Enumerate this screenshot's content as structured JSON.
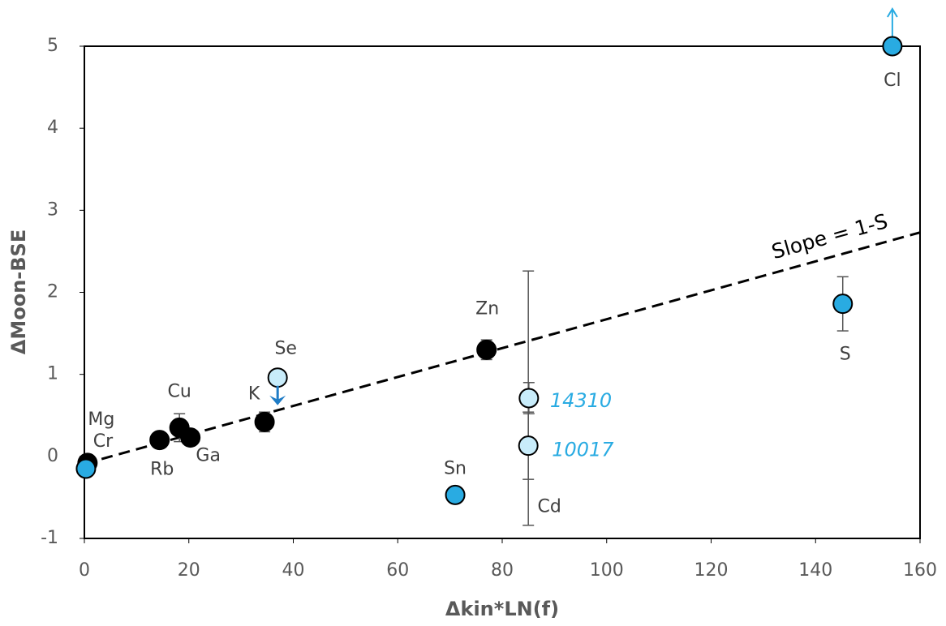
{
  "chart_data": {
    "type": "scatter",
    "xlabel": "Δkin*LN(f)",
    "ylabel": "ΔMoon-BSE",
    "xlim": [
      0,
      160
    ],
    "ylim": [
      -1,
      5
    ],
    "xticks": [
      0,
      20,
      40,
      60,
      80,
      100,
      120,
      140,
      160
    ],
    "yticks": [
      -1,
      0,
      1,
      2,
      3,
      4,
      5
    ],
    "grid": false,
    "colors": {
      "black": "#000000",
      "blue": "#29abe2",
      "light": "#c8ecfa"
    },
    "points": [
      {
        "label": "Mg",
        "x": 0.6,
        "y": -0.08,
        "color": "black"
      },
      {
        "label": "Cr",
        "x": 0.3,
        "y": -0.15,
        "color": "blue"
      },
      {
        "label": "Rb",
        "x": 14.4,
        "y": 0.2,
        "color": "black"
      },
      {
        "label": "Cu",
        "x": 18.2,
        "y": 0.35,
        "err": 0.17,
        "color": "black"
      },
      {
        "label": "Ga",
        "x": 20.3,
        "y": 0.23,
        "color": "black"
      },
      {
        "label": "K",
        "x": 34.5,
        "y": 0.42,
        "err": 0.12,
        "color": "black"
      },
      {
        "label": "Se",
        "x": 37,
        "y": 0.96,
        "color": "light",
        "arrow": "down"
      },
      {
        "label": "Zn",
        "x": 77,
        "y": 1.3,
        "err": 0.12,
        "color": "black"
      },
      {
        "label": "Sn",
        "x": 71,
        "y": -0.47,
        "color": "blue"
      },
      {
        "label": "14310",
        "x": 85.1,
        "y": 0.71,
        "err": 0.19,
        "color": "light",
        "italic": true
      },
      {
        "label": "10017",
        "x": 85,
        "y": 0.13,
        "err": 0.41,
        "color": "light",
        "italic": true
      },
      {
        "label": "S",
        "x": 145.2,
        "y": 1.86,
        "err": 0.33,
        "color": "blue"
      },
      {
        "label": "Cl",
        "x": 154.7,
        "y": 5,
        "color": "blue",
        "arrow": "up"
      }
    ],
    "range": {
      "label": "Cd",
      "x": 85,
      "low": -0.84,
      "high": 2.26
    },
    "fit": {
      "label": "Slope = 1-S",
      "x": [
        0,
        160
      ],
      "y": [
        -0.09,
        2.73
      ]
    }
  }
}
